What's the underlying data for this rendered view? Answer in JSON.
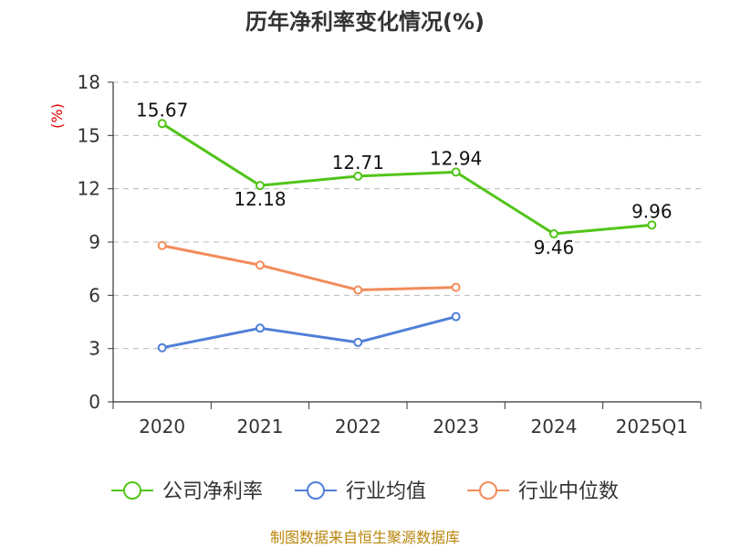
{
  "chart_data": {
    "type": "line",
    "title": "历年净利率变化情况(%)",
    "ylabel": "(%)",
    "xlabel": "",
    "categories": [
      "2020",
      "2021",
      "2022",
      "2023",
      "2024",
      "2025Q1"
    ],
    "ylim": [
      0,
      18
    ],
    "yticks": [
      0,
      3,
      6,
      9,
      12,
      15,
      18
    ],
    "grid": true,
    "legend_position": "bottom",
    "series": [
      {
        "name": "公司净利率",
        "color": "#52c41a",
        "values": [
          15.67,
          12.18,
          12.71,
          12.94,
          9.46,
          9.96
        ],
        "labels": [
          "15.67",
          "12.18",
          "12.71",
          "12.94",
          "9.46",
          "9.96"
        ]
      },
      {
        "name": "行业均值",
        "color": "#4f7fd8",
        "values": [
          3.05,
          4.15,
          3.35,
          4.8,
          null,
          null
        ]
      },
      {
        "name": "行业中位数",
        "color": "#f28c5b",
        "values": [
          8.8,
          7.7,
          6.3,
          6.45,
          null,
          null
        ]
      }
    ],
    "source": "制图数据来自恒生聚源数据库"
  }
}
